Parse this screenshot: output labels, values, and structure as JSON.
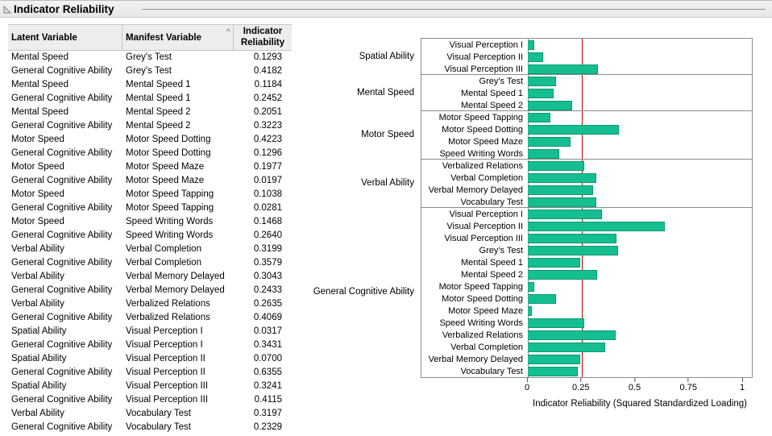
{
  "title": "Indicator Reliability",
  "table": {
    "columns": [
      {
        "label": "Latent Variable"
      },
      {
        "label": "Manifest Variable",
        "sort_indicator": "^"
      },
      {
        "label": "Indicator Reliability"
      }
    ],
    "rows": [
      [
        "Mental Speed",
        "Grey's Test",
        "0.1293"
      ],
      [
        "General Cognitive Ability",
        "Grey's Test",
        "0.4182"
      ],
      [
        "Mental Speed",
        "Mental Speed 1",
        "0.1184"
      ],
      [
        "General Cognitive Ability",
        "Mental Speed 1",
        "0.2452"
      ],
      [
        "Mental Speed",
        "Mental Speed 2",
        "0.2051"
      ],
      [
        "General Cognitive Ability",
        "Mental Speed 2",
        "0.3223"
      ],
      [
        "Motor Speed",
        "Motor Speed Dotting",
        "0.4223"
      ],
      [
        "General Cognitive Ability",
        "Motor Speed Dotting",
        "0.1296"
      ],
      [
        "Motor Speed",
        "Motor Speed Maze",
        "0.1977"
      ],
      [
        "General Cognitive Ability",
        "Motor Speed Maze",
        "0.0197"
      ],
      [
        "Motor Speed",
        "Motor Speed Tapping",
        "0.1038"
      ],
      [
        "General Cognitive Ability",
        "Motor Speed Tapping",
        "0.0281"
      ],
      [
        "Motor Speed",
        "Speed Writing Words",
        "0.1468"
      ],
      [
        "General Cognitive Ability",
        "Speed Writing Words",
        "0.2640"
      ],
      [
        "Verbal Ability",
        "Verbal Completion",
        "0.3199"
      ],
      [
        "General Cognitive Ability",
        "Verbal Completion",
        "0.3579"
      ],
      [
        "Verbal Ability",
        "Verbal Memory Delayed",
        "0.3043"
      ],
      [
        "General Cognitive Ability",
        "Verbal Memory Delayed",
        "0.2433"
      ],
      [
        "Verbal Ability",
        "Verbalized Relations",
        "0.2635"
      ],
      [
        "General Cognitive Ability",
        "Verbalized Relations",
        "0.4069"
      ],
      [
        "Spatial Ability",
        "Visual Perception I",
        "0.0317"
      ],
      [
        "General Cognitive Ability",
        "Visual Perception I",
        "0.3431"
      ],
      [
        "Spatial Ability",
        "Visual Perception II",
        "0.0700"
      ],
      [
        "General Cognitive Ability",
        "Visual Perception II",
        "0.6355"
      ],
      [
        "Spatial Ability",
        "Visual Perception III",
        "0.3241"
      ],
      [
        "General Cognitive Ability",
        "Visual Perception III",
        "0.4115"
      ],
      [
        "Verbal Ability",
        "Vocabulary Test",
        "0.3197"
      ],
      [
        "General Cognitive Ability",
        "Vocabulary Test",
        "0.2329"
      ]
    ]
  },
  "chart_data": {
    "type": "bar",
    "orientation": "horizontal",
    "xlabel": "Indicator Reliability (Squared Standardized Loading)",
    "xlim": [
      0,
      1.05
    ],
    "xticks": [
      0,
      0.25,
      0.5,
      0.75,
      1
    ],
    "xtick_labels": [
      "0",
      "0.25",
      "0.5",
      "0.75",
      "1"
    ],
    "reference_line": {
      "x": 0.25,
      "color": "#C00000"
    },
    "bar_color": "#15BE90",
    "bar_border_color": "#0D9A71",
    "grid": false,
    "groups": [
      {
        "label": "Spatial Ability",
        "items": [
          {
            "label": "Visual Perception I",
            "value": 0.0317
          },
          {
            "label": "Visual Perception II",
            "value": 0.07
          },
          {
            "label": "Visual Perception III",
            "value": 0.3241
          }
        ]
      },
      {
        "label": "Mental Speed",
        "items": [
          {
            "label": "Grey's Test",
            "value": 0.1293
          },
          {
            "label": "Mental Speed 1",
            "value": 0.1184
          },
          {
            "label": "Mental Speed 2",
            "value": 0.2051
          }
        ]
      },
      {
        "label": "Motor Speed",
        "items": [
          {
            "label": "Motor Speed Tapping",
            "value": 0.1038
          },
          {
            "label": "Motor Speed Dotting",
            "value": 0.4223
          },
          {
            "label": "Motor Speed Maze",
            "value": 0.1977
          },
          {
            "label": "Speed Writing Words",
            "value": 0.1468
          }
        ]
      },
      {
        "label": "Verbal Ability",
        "items": [
          {
            "label": "Verbalized Relations",
            "value": 0.2635
          },
          {
            "label": "Verbal Completion",
            "value": 0.3199
          },
          {
            "label": "Verbal Memory Delayed",
            "value": 0.3043
          },
          {
            "label": "Vocabulary Test",
            "value": 0.3197
          }
        ]
      },
      {
        "label": "General Cognitive Ability",
        "items": [
          {
            "label": "Visual Perception I",
            "value": 0.3431
          },
          {
            "label": "Visual Perception II",
            "value": 0.6355
          },
          {
            "label": "Visual Perception III",
            "value": 0.4115
          },
          {
            "label": "Grey's Test",
            "value": 0.4182
          },
          {
            "label": "Mental Speed 1",
            "value": 0.2452
          },
          {
            "label": "Mental Speed 2",
            "value": 0.3223
          },
          {
            "label": "Motor Speed Tapping",
            "value": 0.0281
          },
          {
            "label": "Motor Speed Dotting",
            "value": 0.1296
          },
          {
            "label": "Motor Speed Maze",
            "value": 0.0197
          },
          {
            "label": "Speed Writing Words",
            "value": 0.264
          },
          {
            "label": "Verbalized Relations",
            "value": 0.4069
          },
          {
            "label": "Verbal Completion",
            "value": 0.3579
          },
          {
            "label": "Verbal Memory Delayed",
            "value": 0.2433
          },
          {
            "label": "Vocabulary Test",
            "value": 0.2329
          }
        ]
      }
    ]
  }
}
